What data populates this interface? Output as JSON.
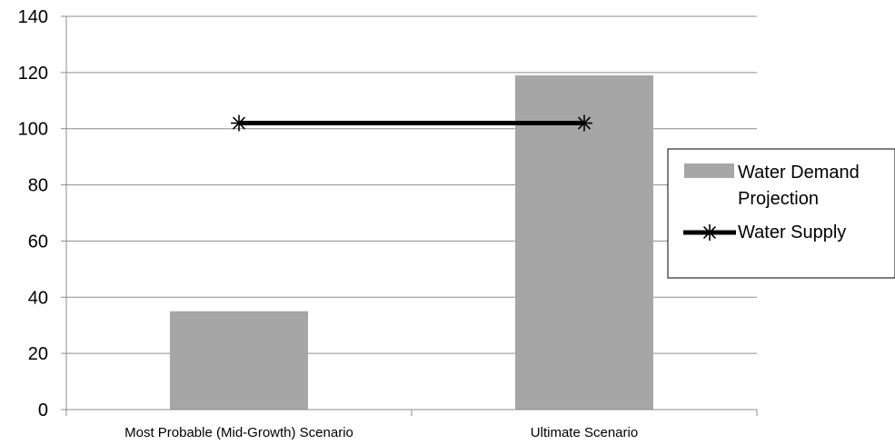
{
  "chart_data": {
    "type": "bar",
    "categories": [
      "Most Probable (Mid-Growth) Scenario",
      "Ultimate Scenario"
    ],
    "series": [
      {
        "name": "Water Demand Projection",
        "kind": "bar",
        "values": [
          35,
          119
        ],
        "color": "#a6a6a6"
      },
      {
        "name": "Water Supply",
        "kind": "line",
        "marker": "star",
        "values": [
          102,
          102
        ],
        "color": "#000000"
      }
    ],
    "ylim": [
      0,
      140
    ],
    "yticks": [
      0,
      20,
      40,
      60,
      80,
      100,
      120,
      140
    ],
    "grid": true,
    "legend": {
      "placement": "right",
      "items": [
        {
          "lines": [
            "Water Demand",
            "Projection"
          ],
          "symbol": "bar"
        },
        {
          "lines": [
            "Water Supply"
          ],
          "symbol": "line-star"
        }
      ]
    }
  }
}
